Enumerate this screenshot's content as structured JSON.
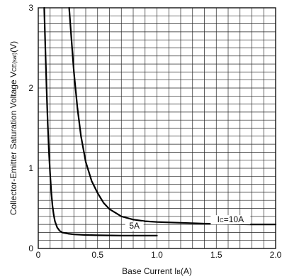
{
  "chart_data": {
    "type": "line",
    "xlabel_main": "Base Current I",
    "xlabel_sub": "B",
    "xlabel_unit": "(A)",
    "ylabel_main": "Collector-Emitter Saturation Voltage V",
    "ylabel_sub": "CE(sat)",
    "ylabel_unit": "(V)",
    "xlim": [
      0,
      2.0
    ],
    "ylim": [
      0,
      3
    ],
    "x_ticks": [
      {
        "value": 0,
        "label": "0"
      },
      {
        "value": 0.5,
        "label": "0.5"
      },
      {
        "value": 1.0,
        "label": "1.0"
      },
      {
        "value": 1.5,
        "label": "1.5"
      },
      {
        "value": 2.0,
        "label": "2.0"
      }
    ],
    "y_ticks": [
      {
        "value": 0,
        "label": "0"
      },
      {
        "value": 1,
        "label": "1"
      },
      {
        "value": 2,
        "label": "2"
      },
      {
        "value": 3,
        "label": "3"
      }
    ],
    "grid": true,
    "series": [
      {
        "label_prefix": "I",
        "label_sub": "C",
        "label_suffix": "=10A",
        "x": [
          0.26,
          0.28,
          0.3,
          0.33,
          0.36,
          0.4,
          0.45,
          0.5,
          0.55,
          0.6,
          0.7,
          0.8,
          0.9,
          1.0,
          1.2,
          1.4,
          1.6,
          1.8,
          2.0
        ],
        "y": [
          3.0,
          2.6,
          2.2,
          1.75,
          1.4,
          1.08,
          0.84,
          0.69,
          0.57,
          0.49,
          0.4,
          0.36,
          0.34,
          0.33,
          0.32,
          0.31,
          0.305,
          0.3,
          0.3
        ]
      },
      {
        "label_prefix": "",
        "label_sub": "",
        "label_suffix": "5A",
        "x": [
          0.05,
          0.06,
          0.07,
          0.08,
          0.09,
          0.1,
          0.11,
          0.12,
          0.13,
          0.14,
          0.16,
          0.18,
          0.2,
          0.25,
          0.3,
          0.4,
          0.5,
          0.7,
          1.0
        ],
        "y": [
          3.0,
          2.5,
          2.0,
          1.55,
          1.2,
          0.92,
          0.7,
          0.53,
          0.42,
          0.34,
          0.26,
          0.22,
          0.2,
          0.185,
          0.175,
          0.168,
          0.165,
          0.16,
          0.16
        ]
      }
    ]
  }
}
